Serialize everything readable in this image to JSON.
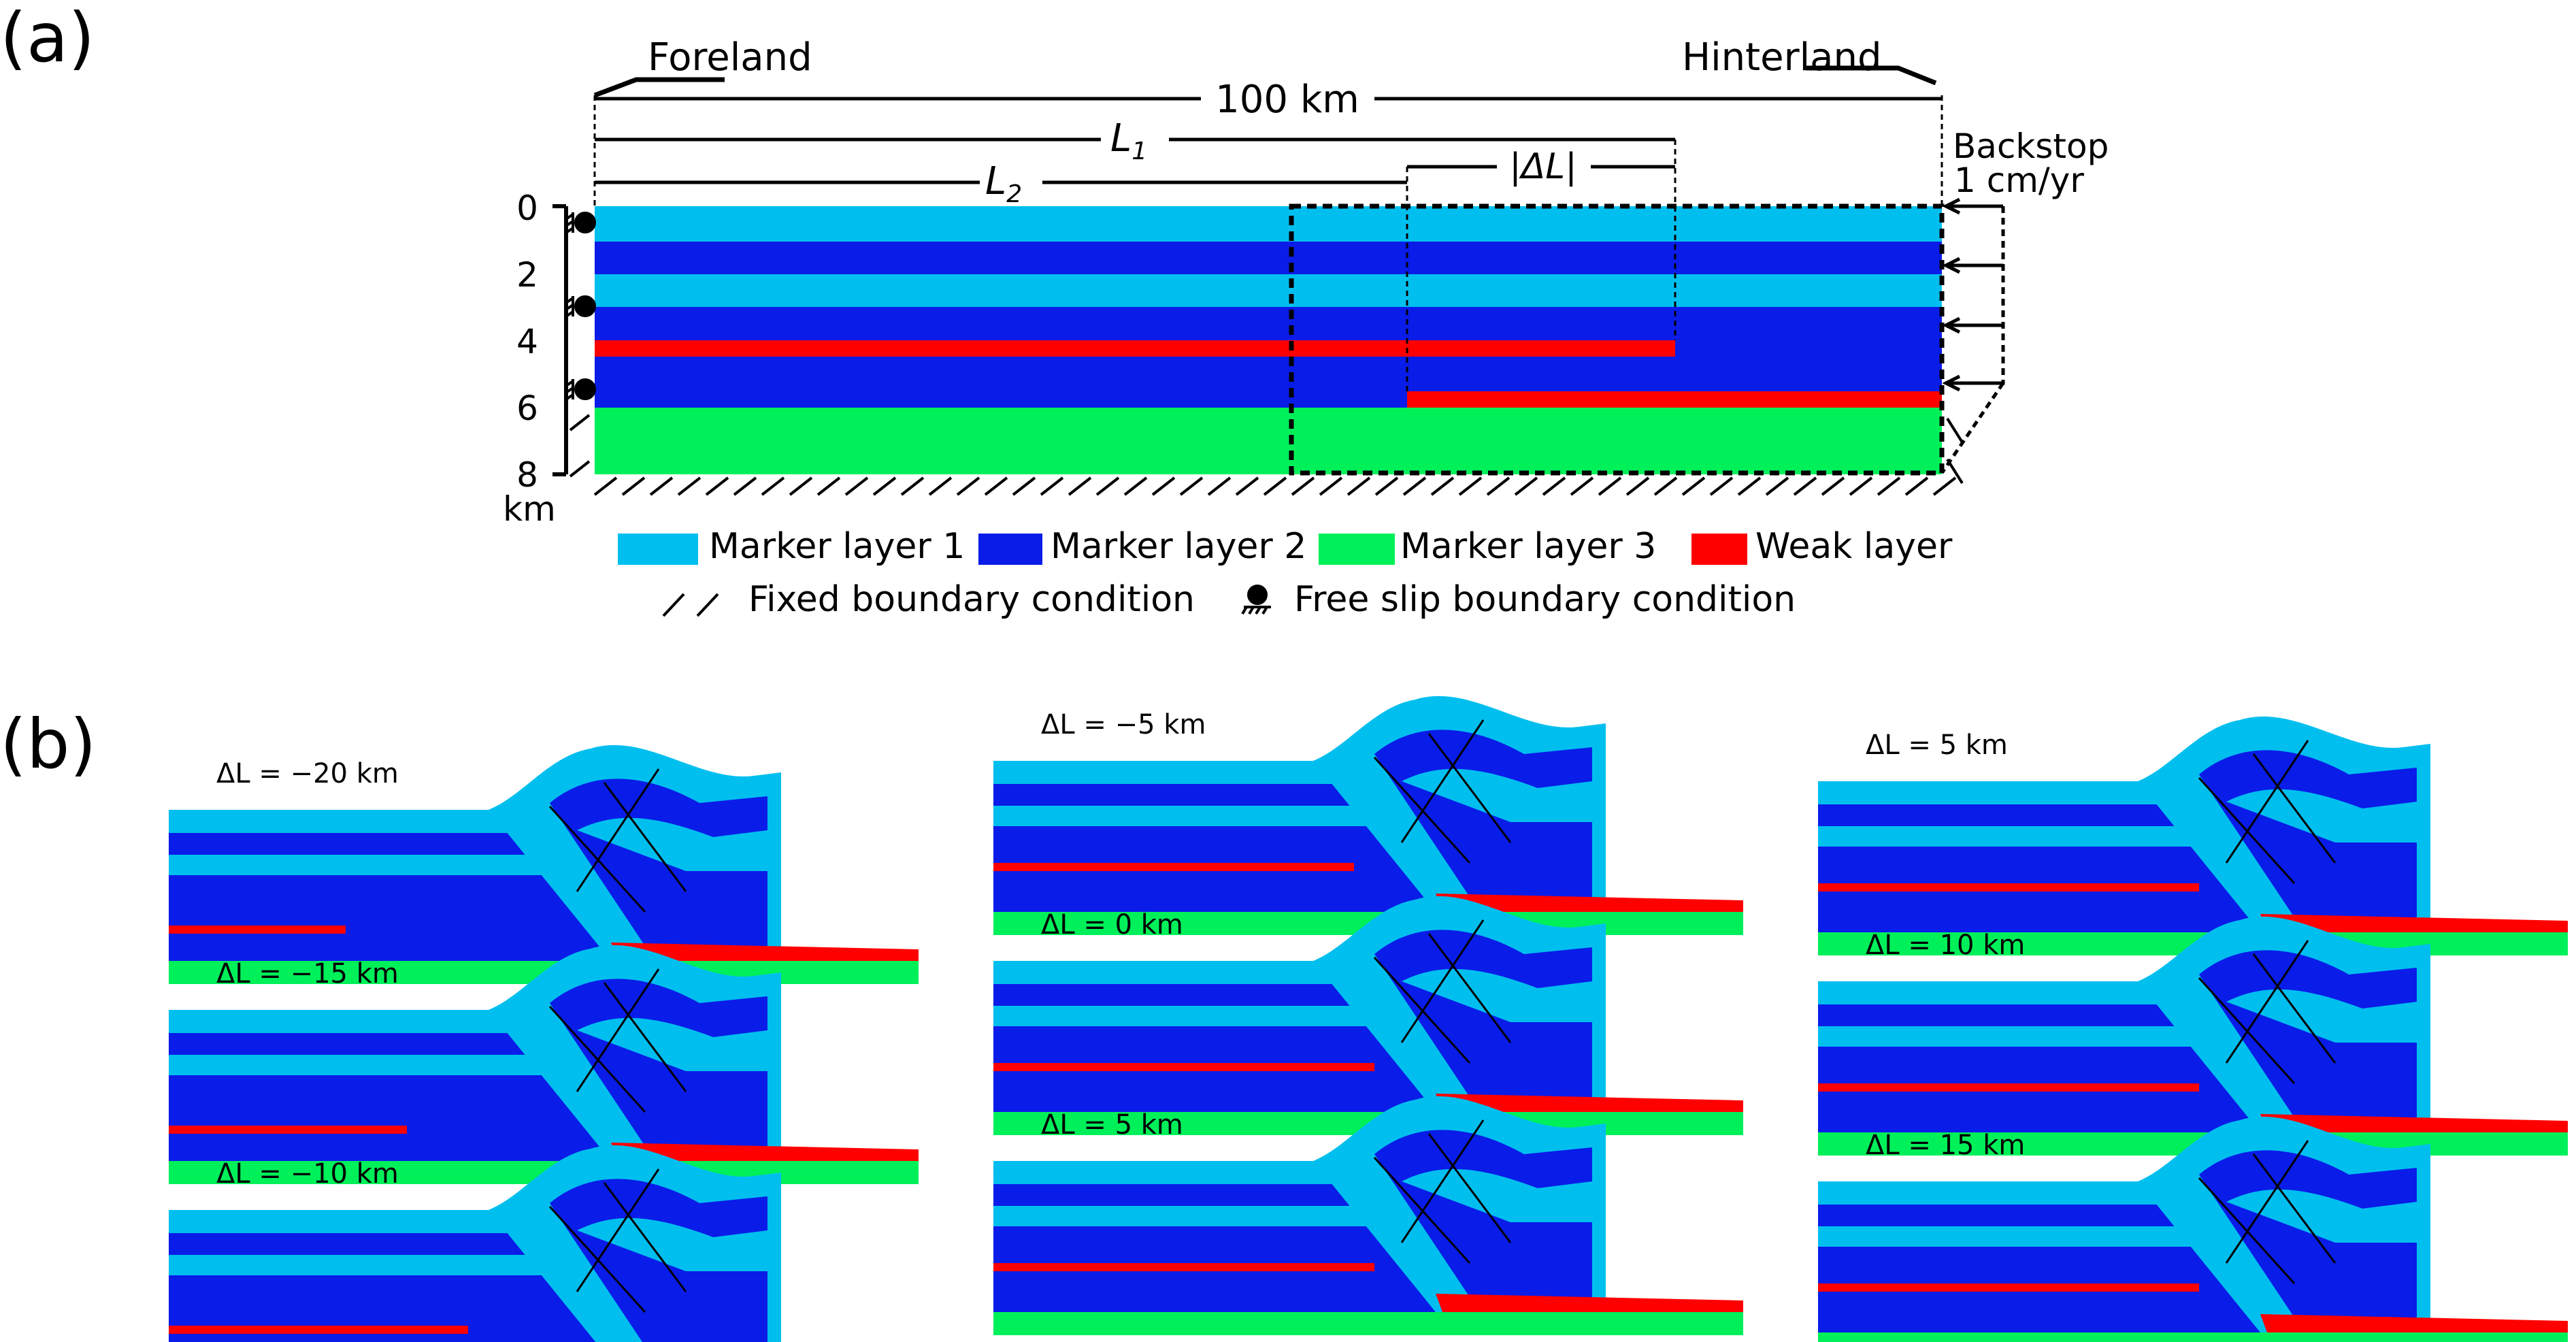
{
  "panel_labels": {
    "a": "(a)",
    "b": "(b)"
  },
  "setup": {
    "foreland": "Foreland",
    "hinterland": "Hinterland",
    "width_label": "100 km",
    "l1": "L",
    "l1_sub": "1",
    "l2": "L",
    "l2_sub": "2",
    "dl": "|ΔL|",
    "backstop": "Backstop",
    "velocity": "1 cm/yr",
    "depth_ticks": [
      "0",
      "2",
      "4",
      "6",
      "8"
    ],
    "depth_unit": "km"
  },
  "legend": {
    "marker1": "Marker layer 1",
    "marker2": "Marker layer 2",
    "marker3": "Marker layer 3",
    "weak": "Weak layer",
    "fixed": "Fixed boundary condition",
    "free": "Free slip boundary condition"
  },
  "colors": {
    "marker1": "#00bfef",
    "marker2": "#0a1ce8",
    "marker3": "#00f05a",
    "weak": "#ff0000"
  },
  "models": [
    {
      "label": "ΔL = −20 km",
      "dl": -20
    },
    {
      "label": "ΔL = −15 km",
      "dl": -15
    },
    {
      "label": "ΔL = −10 km",
      "dl": -10
    },
    {
      "label": "ΔL = −5 km",
      "dl": -5
    },
    {
      "label": "ΔL = 0 km",
      "dl": 0
    },
    {
      "label": "ΔL = 5 km",
      "dl": 5
    },
    {
      "label": "ΔL = 5 km",
      "dl": 5
    },
    {
      "label": "ΔL = 10 km",
      "dl": 10
    },
    {
      "label": "ΔL = 15 km",
      "dl": 15
    }
  ]
}
